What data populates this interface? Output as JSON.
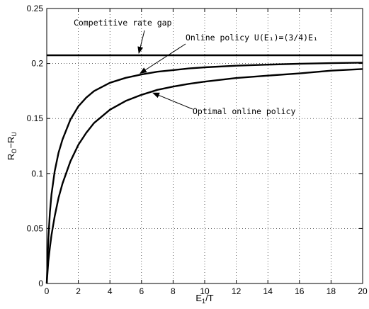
{
  "chart_data": {
    "type": "line",
    "xlabel": "E₁/T",
    "ylabel": "Rₒ−Rᵤ",
    "xlim": [
      0,
      20
    ],
    "ylim": [
      0,
      0.25
    ],
    "xticks": [
      "0",
      "2",
      "4",
      "6",
      "8",
      "10",
      "12",
      "14",
      "16",
      "18",
      "20"
    ],
    "yticks": [
      "0",
      "0.05",
      "0.1",
      "0.15",
      "0.2",
      "0.25"
    ],
    "grid": true,
    "series": [
      {
        "key": "gap",
        "x": [
          0,
          20
        ],
        "y": [
          0.2075,
          0.2075
        ]
      },
      {
        "key": "online",
        "x": [
          0,
          0.1,
          0.2,
          0.3,
          0.5,
          0.75,
          1,
          1.5,
          2,
          2.5,
          3,
          4,
          5,
          6,
          7,
          8,
          9,
          10,
          12,
          14,
          16,
          18,
          20
        ],
        "y": [
          0,
          0.04,
          0.065,
          0.081,
          0.102,
          0.119,
          0.131,
          0.149,
          0.161,
          0.169,
          0.175,
          0.1825,
          0.187,
          0.19,
          0.1925,
          0.194,
          0.1955,
          0.1965,
          0.198,
          0.199,
          0.1998,
          0.2003,
          0.2008
        ]
      },
      {
        "key": "optimal",
        "x": [
          0,
          0.1,
          0.2,
          0.3,
          0.5,
          0.75,
          1,
          1.5,
          2,
          2.5,
          3,
          4,
          5,
          6,
          7,
          8,
          9,
          10,
          12,
          14,
          16,
          18,
          20
        ],
        "y": [
          0,
          0.02,
          0.033,
          0.044,
          0.061,
          0.078,
          0.091,
          0.111,
          0.126,
          0.137,
          0.146,
          0.158,
          0.166,
          0.1715,
          0.176,
          0.179,
          0.1815,
          0.1835,
          0.1868,
          0.189,
          0.191,
          0.1935,
          0.195
        ]
      }
    ],
    "annotations": [
      {
        "text": "Competitive rate gap",
        "point_x": 5.8,
        "point_y": 0.2075
      },
      {
        "text": "Online policy U(E₁)=(3/4)E₁",
        "point_x": 5.8,
        "point_y": 0.19
      },
      {
        "text": "Optimal online policy",
        "point_x": 6.6,
        "point_y": 0.174
      }
    ]
  }
}
